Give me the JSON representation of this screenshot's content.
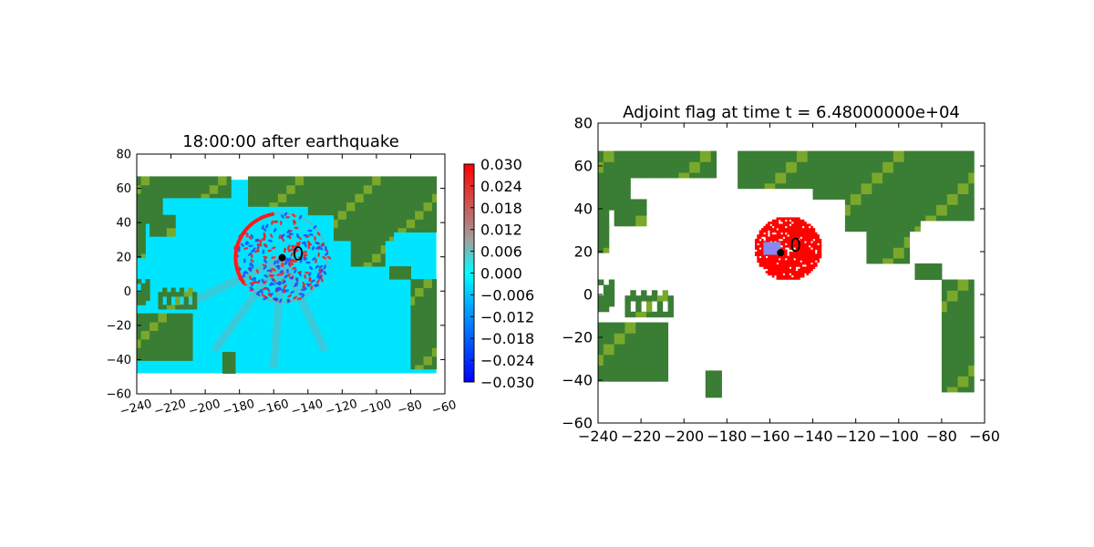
{
  "chart_data": [
    {
      "type": "heatmap",
      "title": "18:00:00 after earthquake",
      "xlabel": "",
      "ylabel": "",
      "xlim": [
        -240,
        -60
      ],
      "ylim": [
        -60,
        80
      ],
      "xticks": [
        "−240",
        "−220",
        "−200",
        "−180",
        "−160",
        "−140",
        "−120",
        "−100",
        "−80",
        "−60"
      ],
      "xtick_values": [
        -240,
        -220,
        -200,
        -180,
        -160,
        -140,
        -120,
        -100,
        -80,
        -60
      ],
      "yticks": [
        "−60",
        "−40",
        "−20",
        "0",
        "20",
        "40",
        "60",
        "80"
      ],
      "ytick_values": [
        -60,
        -40,
        -20,
        0,
        20,
        40,
        60,
        80
      ],
      "data_extent": {
        "x": [
          -240,
          -65
        ],
        "y": [
          -48,
          65
        ]
      },
      "marker": {
        "x": -155,
        "y": 19.5,
        "label": "0"
      },
      "colorbar": {
        "range": [
          -0.03,
          0.03
        ],
        "ticks": [
          "0.030",
          "0.024",
          "0.018",
          "0.012",
          "0.006",
          "0.000",
          "−0.006",
          "−0.012",
          "−0.018",
          "−0.024",
          "−0.030"
        ],
        "tick_values": [
          0.03,
          0.024,
          0.018,
          0.012,
          0.006,
          0.0,
          -0.006,
          -0.012,
          -0.018,
          -0.024,
          -0.03
        ]
      },
      "colors": {
        "ocean": "#00e5ff",
        "land": "#3a7d34",
        "land_light": "#7aa82a",
        "wave_red": "#ff1a1a",
        "wave_blue": "#1a4cff",
        "wave_gray": "#9a9a9a"
      }
    },
    {
      "type": "heatmap",
      "title": "Adjoint flag at time t = 6.48000000e+04",
      "xlabel": "",
      "ylabel": "",
      "xlim": [
        -240,
        -60
      ],
      "ylim": [
        -60,
        80
      ],
      "xticks": [
        "−240",
        "−220",
        "−200",
        "−180",
        "−160",
        "−140",
        "−120",
        "−100",
        "−80",
        "−60"
      ],
      "xtick_values": [
        -240,
        -220,
        -200,
        -180,
        -160,
        -140,
        -120,
        -100,
        -80,
        -60
      ],
      "yticks": [
        "−60",
        "−40",
        "−20",
        "0",
        "20",
        "40",
        "60",
        "80"
      ],
      "ytick_values": [
        -60,
        -40,
        -20,
        0,
        20,
        40,
        60,
        80
      ],
      "data_extent": {
        "x": [
          -240,
          -65
        ],
        "y": [
          -48,
          65
        ]
      },
      "marker": {
        "x": -155,
        "y": 19.5,
        "label": "0"
      },
      "flag_region": {
        "center_x": -152,
        "center_y": 21,
        "radius": 15
      },
      "colors": {
        "land": "#3a7d34",
        "land_light": "#7aa82a",
        "flag": "#ff0000",
        "box": "#8888ee"
      }
    }
  ]
}
